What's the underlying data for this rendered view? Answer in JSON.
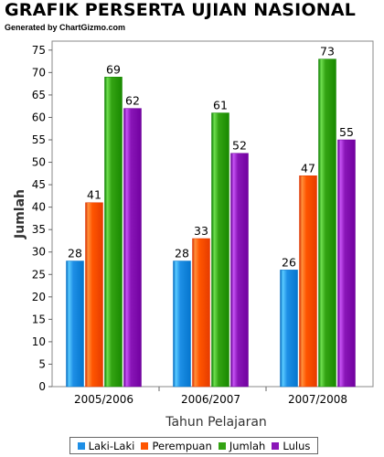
{
  "title": "GRAFIK PERSERTA UJIAN NASIONAL",
  "subtitle": "Generated by ChartGizmo.com",
  "chart_data": {
    "type": "bar",
    "title": "GRAFIK PERSERTA UJIAN NASIONAL",
    "xlabel": "Tahun Pelajaran",
    "ylabel": "Jumlah",
    "ylim": [
      0,
      77
    ],
    "yticks": [
      0,
      5,
      10,
      15,
      20,
      25,
      30,
      35,
      40,
      45,
      50,
      55,
      60,
      65,
      70,
      75
    ],
    "grid": false,
    "legend_position": "bottom",
    "categories": [
      "2005/2006",
      "2006/2007",
      "2007/2008"
    ],
    "series": [
      {
        "name": "Laki-Laki",
        "color": "#1e8fe6",
        "values": [
          28,
          28,
          26
        ]
      },
      {
        "name": "Perempuan",
        "color": "#ff5500",
        "values": [
          41,
          33,
          47
        ]
      },
      {
        "name": "Jumlah",
        "color": "#33a313",
        "values": [
          69,
          61,
          73
        ]
      },
      {
        "name": "Lulus",
        "color": "#8a16b8",
        "values": [
          62,
          52,
          55
        ]
      }
    ]
  }
}
